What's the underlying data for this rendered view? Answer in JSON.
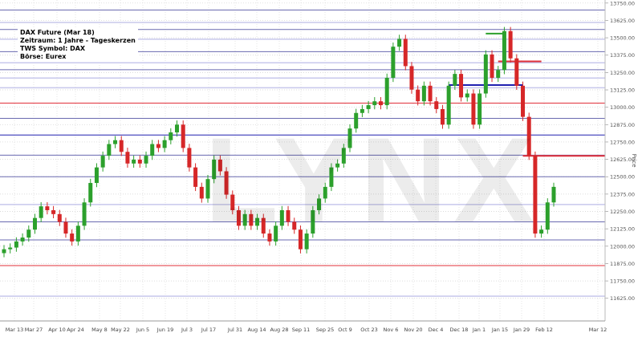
{
  "chart_data": {
    "type": "candlestick",
    "title_lines": [
      "DAX Future (Mar 18)",
      "Zeitraum: 1 Jahre - Tageskerzen",
      "TWS Symbol: DAX",
      "Börse: Eurex"
    ],
    "ylabel": "Price",
    "ylim": [
      11560,
      13772
    ],
    "y_ticks": [
      "13750.00",
      "13625.00",
      "13500.00",
      "13375.00",
      "13250.00",
      "13125.00",
      "13000.00",
      "12875.00",
      "12750.00",
      "12625.00",
      "12500.00",
      "12375.00",
      "12250.00",
      "12125.00",
      "12000.00",
      "11875.00",
      "11750.00",
      "11625.00"
    ],
    "x_ticks": [
      "Mar 13",
      "Mar 27",
      "Apr 10",
      "Apr 24",
      "May 8",
      "May 22",
      "Jun 5",
      "Jun 19",
      "Jul 3",
      "Jul 17",
      "Jul 31",
      "Aug 14",
      "Aug 28",
      "Sep 11",
      "Sep 25",
      "Oct 9",
      "Oct 23",
      "Nov 6",
      "Nov 20",
      "Dec 4",
      "Dec 18",
      "Jan 1",
      "Jan 15",
      "Jan 29",
      "Feb 12",
      "Mar 12"
    ],
    "grid": true,
    "first_open": 11950,
    "close": [
      11978,
      11990,
      12034,
      12062,
      12119,
      12203,
      12287,
      12259,
      12231,
      12175,
      12091,
      12034,
      12147,
      12315,
      12455,
      12567,
      12651,
      12735,
      12763,
      12679,
      12595,
      12623,
      12595,
      12651,
      12735,
      12707,
      12763,
      12819,
      12875,
      12707,
      12567,
      12427,
      12343,
      12483,
      12623,
      12539,
      12371,
      12259,
      12147,
      12231,
      12147,
      12203,
      12091,
      12034,
      12147,
      12259,
      12175,
      12119,
      11978,
      12091,
      12259,
      12343,
      12427,
      12567,
      12595,
      12707,
      12847,
      12959,
      12987,
      13015,
      13043,
      13015,
      13212,
      13436,
      13492,
      13296,
      13127,
      13043,
      13155,
      13043,
      12987,
      12875,
      13155,
      13240,
      13071,
      13099,
      12875,
      13099,
      13380,
      13212,
      13268,
      13548,
      13352,
      13155,
      12931,
      12651,
      12091,
      12119,
      12315,
      12427
    ],
    "colors": {
      "up": "#2ca02c",
      "down": "#d62728",
      "purple": "#6a6ab0",
      "lavender": "#c8c8ec",
      "red": "#e0303a",
      "blue": "#2020b0"
    },
    "levels": [
      {
        "price": 13700,
        "color": "purple"
      },
      {
        "price": 13610,
        "color": "lavender"
      },
      {
        "price": 13560,
        "color": "purple"
      },
      {
        "price": 13490,
        "color": "lavender"
      },
      {
        "price": 13400,
        "color": "purple"
      },
      {
        "price": 13320,
        "color": "lavender"
      },
      {
        "price": 13270,
        "color": "purple"
      },
      {
        "price": 13210,
        "color": "lavender"
      },
      {
        "price": 13140,
        "color": "lavender"
      },
      {
        "price": 13030,
        "color": "red"
      },
      {
        "price": 12920,
        "color": "purple"
      },
      {
        "price": 12800,
        "color": "blue"
      },
      {
        "price": 12655,
        "color": "purple"
      },
      {
        "price": 12500,
        "color": "purple"
      },
      {
        "price": 12300,
        "color": "lavender"
      },
      {
        "price": 12175,
        "color": "purple"
      },
      {
        "price": 12045,
        "color": "purple"
      },
      {
        "price": 11860,
        "color": "red"
      },
      {
        "price": 11640,
        "color": "lavender"
      }
    ],
    "segments": [
      {
        "price": 13530,
        "color": "up",
        "from_index": 78,
        "to_index": 81
      },
      {
        "price": 13160,
        "color": "blue",
        "from_index": 72,
        "to_index": 84
      },
      {
        "price": 13330,
        "color": "red",
        "from_index": 80,
        "to_index": 87
      },
      {
        "price": 12650,
        "color": "red",
        "from_index": 84,
        "to_index": 100
      }
    ]
  },
  "watermark": "LYNX"
}
